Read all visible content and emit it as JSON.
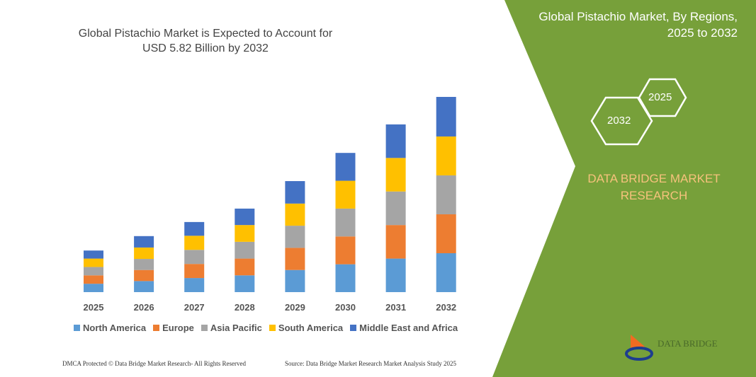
{
  "title": "Global Pistachio Market is Expected to Account for USD 5.82 Billion by 2032",
  "panel": {
    "title_line1": "Global Pistachio Market, By Regions,",
    "title_line2": "2025 to 2032",
    "hex_a": "2025",
    "hex_b": "2032",
    "brand_line1": "DATA BRIDGE MARKET",
    "brand_line2": "RESEARCH",
    "color": "#77a03a",
    "brand_color": "#f6c27c"
  },
  "footer": {
    "left": "DMCA Protected © Data Bridge Market Research- All Rights Reserved",
    "right": "Source: Data Bridge Market Research Market Analysis Study 2025"
  },
  "logo_text": "DATA BRIDGE",
  "chart_data": {
    "type": "bar",
    "stacked": true,
    "title": "Global Pistachio Market is Expected to Account for USD 5.82 Billion by 2032",
    "categories": [
      "2025",
      "2026",
      "2027",
      "2028",
      "2029",
      "2030",
      "2031",
      "2032"
    ],
    "legend_position": "bottom",
    "grid": false,
    "series": [
      {
        "name": "North America",
        "color": "#5b9bd5",
        "values": [
          0.25,
          0.33,
          0.42,
          0.5,
          0.66,
          0.83,
          1.0,
          1.16
        ]
      },
      {
        "name": "Europe",
        "color": "#ed7d31",
        "values": [
          0.25,
          0.33,
          0.42,
          0.5,
          0.66,
          0.83,
          1.0,
          1.16
        ]
      },
      {
        "name": "Asia Pacific",
        "color": "#a5a5a5",
        "values": [
          0.25,
          0.33,
          0.42,
          0.5,
          0.66,
          0.83,
          1.0,
          1.16
        ]
      },
      {
        "name": "South America",
        "color": "#ffc000",
        "values": [
          0.25,
          0.34,
          0.42,
          0.5,
          0.66,
          0.83,
          1.0,
          1.16
        ]
      },
      {
        "name": "Middle East and Africa",
        "color": "#4472c4",
        "values": [
          0.24,
          0.34,
          0.41,
          0.49,
          0.67,
          0.83,
          1.0,
          1.18
        ]
      }
    ]
  }
}
